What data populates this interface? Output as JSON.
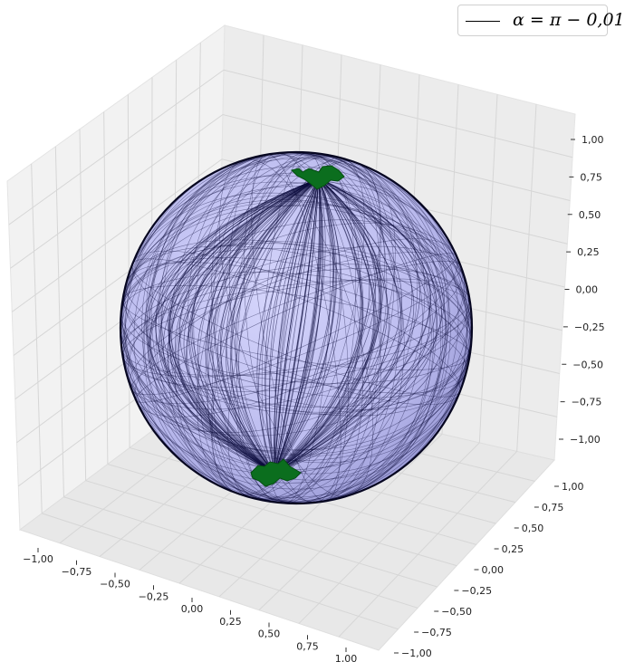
{
  "chart_data": {
    "type": "line",
    "projection": "3d",
    "title": "",
    "xlabel": "",
    "ylabel": "",
    "zlabel": "",
    "xlim": [
      -1.0,
      1.0
    ],
    "ylim": [
      -1.0,
      1.0
    ],
    "zlim": [
      -1.0,
      1.0
    ],
    "grid": true,
    "legend_position": "top-right",
    "legend": [
      {
        "label": "α = π − 0,01",
        "color": "#000000"
      }
    ],
    "surface": {
      "shape": "unit sphere",
      "color": "#b8b8f0"
    },
    "curve_color": "#0a0a3a",
    "cluster_color": "#0b6e1e",
    "x_ticks": [
      "−1,00",
      "−0,75",
      "−0,50",
      "−0,25",
      "0,00",
      "0,25",
      "0,50",
      "0,75",
      "1,00"
    ],
    "y_ticks": [
      "−1,00",
      "−0,75",
      "−0,50",
      "−0,25",
      "0,00",
      "0,25",
      "0,50",
      "0,75",
      "1,00"
    ],
    "z_ticks": [
      "1,00",
      "0,75",
      "0,50",
      "0,25",
      "0,00",
      "−0,25",
      "−0,50",
      "−0,75",
      "−1,00"
    ]
  }
}
